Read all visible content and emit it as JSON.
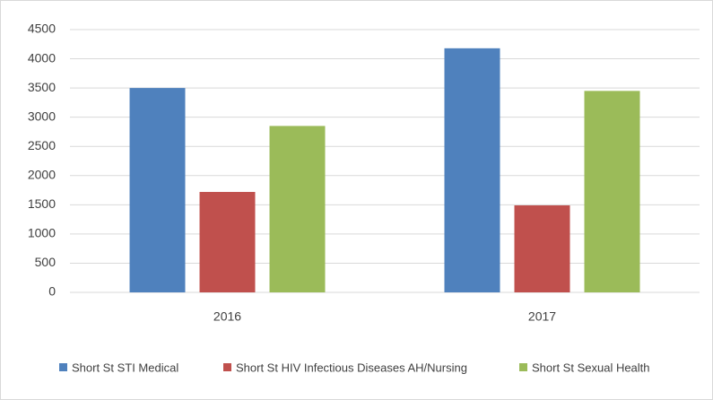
{
  "chart_data": {
    "type": "bar",
    "categories": [
      "2016",
      "2017"
    ],
    "series": [
      {
        "name": "Short St STI Medical",
        "color": "#4f81bd",
        "values": [
          3500,
          4180
        ]
      },
      {
        "name": "Short St HIV Infectious Diseases AH/Nursing",
        "color": "#c0504d",
        "values": [
          1720,
          1490
        ]
      },
      {
        "name": "Short St Sexual Health",
        "color": "#9bbb59",
        "values": [
          2850,
          3450
        ]
      }
    ],
    "ylim": [
      0,
      4500
    ],
    "yticks": [
      0,
      500,
      1000,
      1500,
      2000,
      2500,
      3000,
      3500,
      4000,
      4500
    ],
    "grid": true,
    "legend": "bottom"
  }
}
